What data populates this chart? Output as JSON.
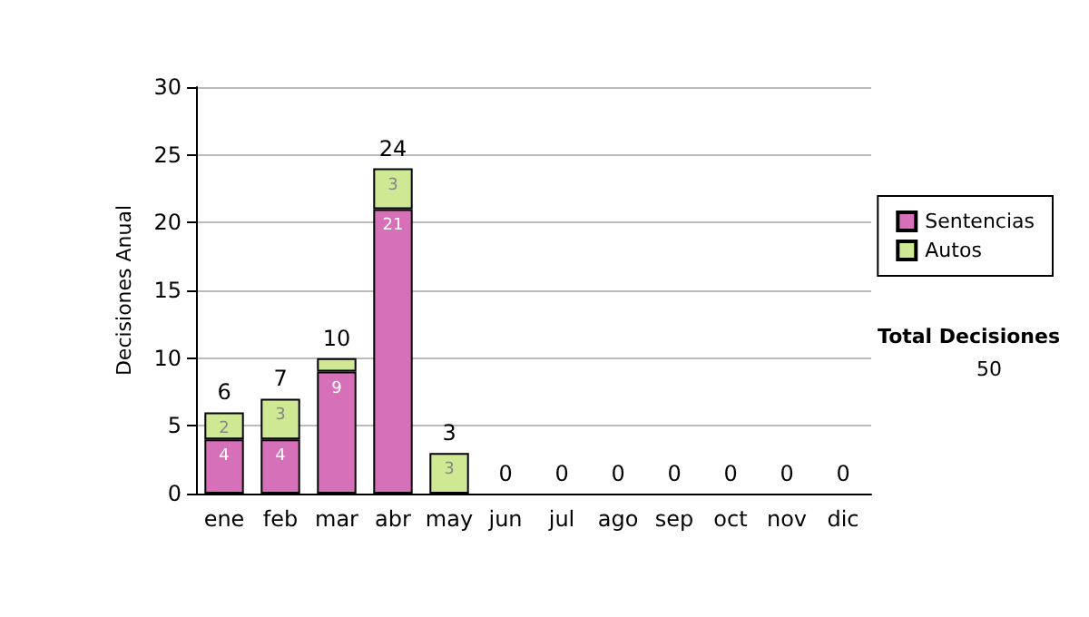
{
  "chart_data": {
    "type": "bar",
    "stacked": true,
    "ylabel": "Decisiones Anual",
    "categories": [
      "ene",
      "feb",
      "mar",
      "abr",
      "may",
      "jun",
      "jul",
      "ago",
      "sep",
      "oct",
      "nov",
      "dic"
    ],
    "series": [
      {
        "name": "Sentencias",
        "color": "#d670b9",
        "values": [
          4,
          4,
          9,
          21,
          0,
          0,
          0,
          0,
          0,
          0,
          0,
          0
        ],
        "value_labels": [
          "4",
          "4",
          "9",
          "21",
          null,
          null,
          null,
          null,
          null,
          null,
          null,
          null
        ]
      },
      {
        "name": "Autos",
        "color": "#cfe894",
        "values": [
          2,
          3,
          1,
          3,
          3,
          0,
          0,
          0,
          0,
          0,
          0,
          0
        ],
        "value_labels": [
          "2",
          "3",
          null,
          "3",
          "3",
          null,
          null,
          null,
          null,
          null,
          null,
          null
        ]
      }
    ],
    "totals": [
      "6",
      "7",
      "10",
      "24",
      "3",
      "0",
      "0",
      "0",
      "0",
      "0",
      "0",
      "0"
    ],
    "ylim": [
      0,
      30
    ],
    "yticks": [
      0,
      5,
      10,
      15,
      20,
      25,
      30
    ],
    "grid": "y",
    "legend": "right",
    "annotations": [
      "Total Decisiones",
      "50"
    ]
  }
}
